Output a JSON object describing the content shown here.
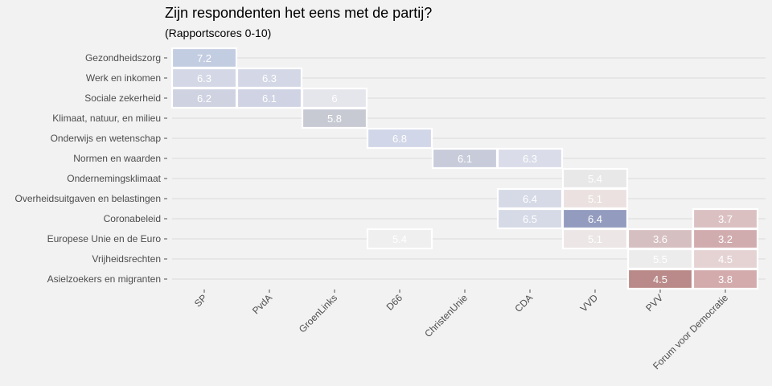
{
  "chart_data": {
    "type": "heatmap",
    "title": "Zijn respondenten het eens met de partij?",
    "subtitle": "(Rapportscores 0-10)",
    "x_categories": [
      "SP",
      "PvdA",
      "GroenLinks",
      "D66",
      "ChristenUnie",
      "CDA",
      "VVD",
      "PVV",
      "Forum voor Democratie"
    ],
    "y_categories": [
      "Gezondheidszorg",
      "Werk en inkomen",
      "Sociale zekerheid",
      "Klimaat, natuur, en milieu",
      "Onderwijs en wetenschap",
      "Normen en waarden",
      "Ondernemingsklimaat",
      "Overheidsuitgaven en belastingen",
      "Coronabeleid",
      "Europese Unie en de Euro",
      "Vrijheidsrechten",
      "Asielzoekers en migranten"
    ],
    "cells": [
      {
        "x": "SP",
        "y": "Gezondheidszorg",
        "value": 7.2,
        "label": "7.2"
      },
      {
        "x": "SP",
        "y": "Werk en inkomen",
        "value": 6.3,
        "label": "6.3"
      },
      {
        "x": "PvdA",
        "y": "Werk en inkomen",
        "value": 6.3,
        "label": "6.3"
      },
      {
        "x": "SP",
        "y": "Sociale zekerheid",
        "value": 6.2,
        "label": "6.2"
      },
      {
        "x": "PvdA",
        "y": "Sociale zekerheid",
        "value": 6.1,
        "label": "6.1"
      },
      {
        "x": "GroenLinks",
        "y": "Sociale zekerheid",
        "value": 6.0,
        "label": "6"
      },
      {
        "x": "GroenLinks",
        "y": "Klimaat, natuur, en milieu",
        "value": 5.8,
        "label": "5.8"
      },
      {
        "x": "D66",
        "y": "Onderwijs en wetenschap",
        "value": 6.8,
        "label": "6.8"
      },
      {
        "x": "ChristenUnie",
        "y": "Normen en waarden",
        "value": 6.1,
        "label": "6.1"
      },
      {
        "x": "CDA",
        "y": "Normen en waarden",
        "value": 6.3,
        "label": "6.3"
      },
      {
        "x": "VVD",
        "y": "Ondernemingsklimaat",
        "value": 5.4,
        "label": "5.4"
      },
      {
        "x": "CDA",
        "y": "Overheidsuitgaven en belastingen",
        "value": 6.4,
        "label": "6.4"
      },
      {
        "x": "VVD",
        "y": "Overheidsuitgaven en belastingen",
        "value": 5.1,
        "label": "5.1"
      },
      {
        "x": "CDA",
        "y": "Coronabeleid",
        "value": 6.5,
        "label": "6.5"
      },
      {
        "x": "VVD",
        "y": "Coronabeleid",
        "value": 6.4,
        "label": "6.4"
      },
      {
        "x": "Forum voor Democratie",
        "y": "Coronabeleid",
        "value": 3.7,
        "label": "3.7"
      },
      {
        "x": "D66",
        "y": "Europese Unie en de Euro",
        "value": 5.4,
        "label": "5.4"
      },
      {
        "x": "VVD",
        "y": "Europese Unie en de Euro",
        "value": 5.1,
        "label": "5.1"
      },
      {
        "x": "PVV",
        "y": "Europese Unie en de Euro",
        "value": 3.6,
        "label": "3.6"
      },
      {
        "x": "Forum voor Democratie",
        "y": "Europese Unie en de Euro",
        "value": 3.2,
        "label": "3.2"
      },
      {
        "x": "PVV",
        "y": "Vrijheidsrechten",
        "value": 5.5,
        "label": "5.5"
      },
      {
        "x": "Forum voor Democratie",
        "y": "Vrijheidsrechten",
        "value": 4.5,
        "label": "4.5"
      },
      {
        "x": "PVV",
        "y": "Asielzoekers en migranten",
        "value": 4.5,
        "label": "4.5"
      },
      {
        "x": "Forum voor Democratie",
        "y": "Asielzoekers en migranten",
        "value": 3.8,
        "label": "3.8"
      }
    ],
    "cell_colors": {
      "Gezondheidszorg|SP": "#c3cde2",
      "Werk en inkomen|SP": "#d4d8e6",
      "Werk en inkomen|PvdA": "#d4d8e6",
      "Sociale zekerheid|SP": "#cfd2e1",
      "Sociale zekerheid|PvdA": "#cfd3e3",
      "Sociale zekerheid|GroenLinks": "#e5e5ec",
      "Klimaat, natuur, en milieu|GroenLinks": "#c8cad3",
      "Onderwijs en wetenschap|D66": "#d1d6e8",
      "Normen en waarden|ChristenUnie": "#c8ccda",
      "Normen en waarden|CDA": "#dadde9",
      "Ondernemingsklimaat|VVD": "#e8e8e8",
      "Overheidsuitgaven en belastingen|CDA": "#d6dae7",
      "Overheidsuitgaven en belastingen|VVD": "#ebe1e1",
      "Coronabeleid|CDA": "#d6dae7",
      "Coronabeleid|VVD": "#939cbf",
      "Coronabeleid|Forum voor Democratie": "#dbc0c2",
      "Europese Unie en de Euro|D66": "#efefef",
      "Europese Unie en de Euro|VVD": "#ece6e6",
      "Europese Unie en de Euro|PVV": "#d6bfc1",
      "Europese Unie en de Euro|Forum voor Democratie": "#d1acae",
      "Vrijheidsrechten|PVV": "#ececed",
      "Vrijheidsrechten|Forum voor Democratie": "#e5d3d4",
      "Asielzoekers en migranten|PVV": "#b98a89",
      "Asielzoekers en migranten|Forum voor Democratie": "#d3abac"
    },
    "grid": true,
    "legend": "none"
  }
}
